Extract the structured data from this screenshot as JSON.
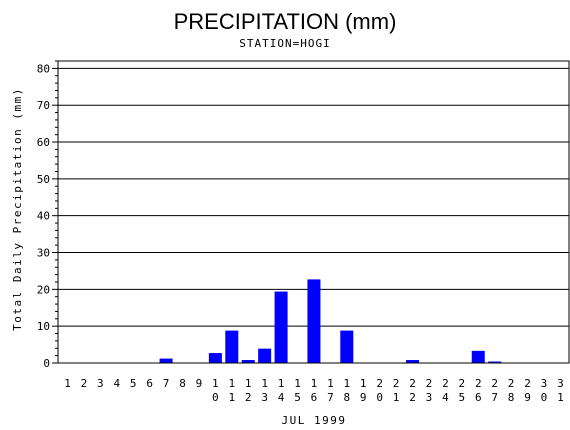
{
  "chart_data": {
    "type": "bar",
    "title": "PRECIPITATION (mm)",
    "subtitle": "STATION=HOGI",
    "xlabel": "JUL 1999",
    "ylabel": "Total Daily Precipitation (mm)",
    "ylim": [
      0,
      82
    ],
    "yticks": [
      0,
      10,
      20,
      30,
      40,
      50,
      60,
      70,
      80
    ],
    "grid": true,
    "bar_color": "#0000ff",
    "categories": [
      "1",
      "2",
      "3",
      "4",
      "5",
      "6",
      "7",
      "8",
      "9",
      "10",
      "11",
      "12",
      "13",
      "14",
      "15",
      "16",
      "17",
      "18",
      "19",
      "20",
      "21",
      "22",
      "23",
      "24",
      "25",
      "26",
      "27",
      "28",
      "29",
      "30",
      "31"
    ],
    "values": [
      0,
      0,
      0,
      0,
      0,
      0,
      1.2,
      0,
      0,
      2.7,
      8.8,
      0.8,
      3.9,
      19.4,
      0,
      22.7,
      0,
      8.8,
      0,
      0,
      0,
      0.8,
      0,
      0,
      0,
      3.3,
      0.4,
      0,
      0,
      0,
      0
    ]
  }
}
